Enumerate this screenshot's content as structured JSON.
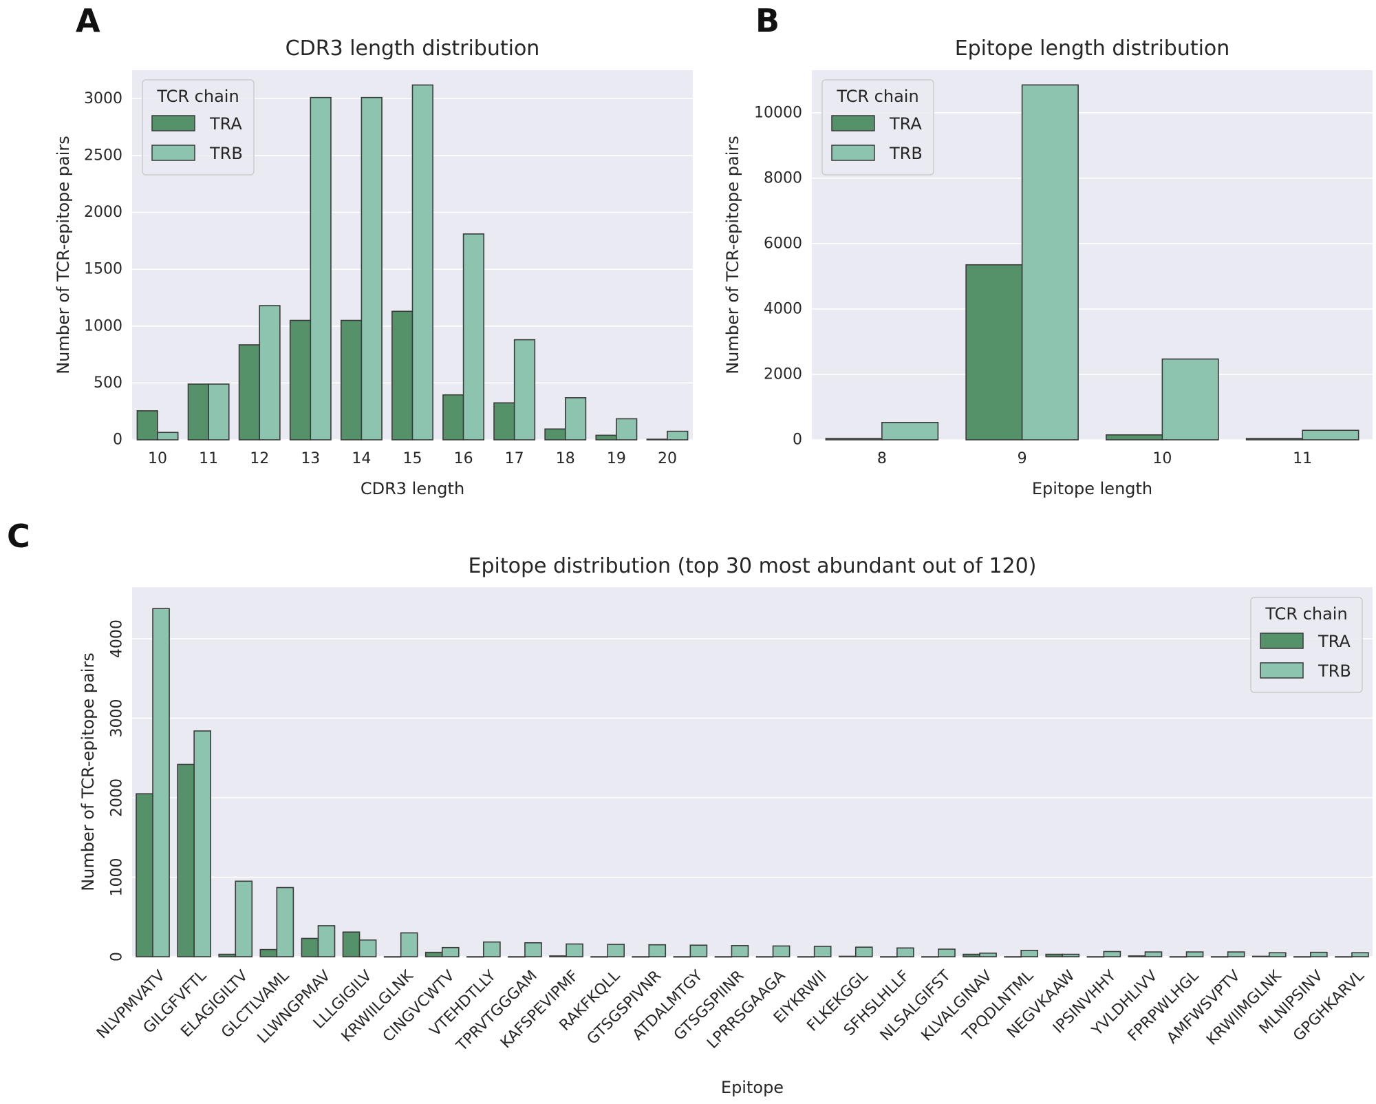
{
  "panels": [
    {
      "letter": "A",
      "chart_data": {
        "type": "bar",
        "title": "CDR3 length distribution",
        "xlabel": "CDR3 length",
        "ylabel": "Number of TCR-epitope pairs",
        "categories": [
          "10",
          "11",
          "12",
          "13",
          "14",
          "15",
          "16",
          "17",
          "18",
          "19",
          "20"
        ],
        "series": [
          {
            "name": "TRA",
            "values": [
              255,
              490,
              835,
              1050,
              1050,
              1130,
              395,
              325,
              95,
              40,
              5
            ]
          },
          {
            "name": "TRB",
            "values": [
              65,
              490,
              1180,
              3010,
              3010,
              3120,
              1810,
              880,
              370,
              185,
              75
            ]
          }
        ],
        "ylim": [
          0,
          3250
        ],
        "yticks": [
          0,
          500,
          1000,
          1500,
          2000,
          2500,
          3000
        ],
        "legend_title": "TCR chain",
        "legend_position": "top-left",
        "grid": true
      }
    },
    {
      "letter": "B",
      "chart_data": {
        "type": "bar",
        "title": "Epitope length distribution",
        "xlabel": "Epitope length",
        "ylabel": "Number of TCR-epitope pairs",
        "categories": [
          "8",
          "9",
          "10",
          "11"
        ],
        "series": [
          {
            "name": "TRA",
            "values": [
              40,
              5350,
              150,
              40
            ]
          },
          {
            "name": "TRB",
            "values": [
              530,
              10850,
              2470,
              290
            ]
          }
        ],
        "ylim": [
          0,
          11300
        ],
        "yticks": [
          0,
          2000,
          4000,
          6000,
          8000,
          10000
        ],
        "legend_title": "TCR chain",
        "legend_position": "top-left",
        "grid": true
      }
    },
    {
      "letter": "C",
      "chart_data": {
        "type": "bar",
        "title": "Epitope distribution (top 30 most abundant out of 120)",
        "xlabel": "Epitope",
        "ylabel": "Number of TCR-epitope pairs",
        "categories": [
          "NLVPMVATV",
          "GILGFVFTL",
          "ELAGIGILTV",
          "GLCTLVAML",
          "LLWNGPMAV",
          "LLLGIGILV",
          "KRWIILGLNK",
          "CINGVCWTV",
          "VTEHDTLLY",
          "TPRVTGGGAM",
          "KAFSPEVIPMF",
          "RAKFKQLL",
          "GTSGSPIVNR",
          "ATDALMTGY",
          "GTSGSPIINR",
          "LPRRSGAAGA",
          "EIYKRWII",
          "FLKEKGGL",
          "SFHSLHLLF",
          "NLSALGIFST",
          "KLVALGINAV",
          "TPQDLNTML",
          "NEGVKAAW",
          "IPSINVHHY",
          "YVLDHLIVV",
          "FPRPWLHGL",
          "AMFWSVPTV",
          "KRWIIMGLNK",
          "MLNIPSINV",
          "GPGHKARVL"
        ],
        "series": [
          {
            "name": "TRA",
            "values": [
              2050,
              2420,
              30,
              90,
              230,
              310,
              0,
              55,
              0,
              0,
              10,
              0,
              0,
              0,
              0,
              0,
              0,
              5,
              0,
              0,
              30,
              0,
              30,
              0,
              10,
              0,
              0,
              5,
              0,
              0
            ]
          },
          {
            "name": "TRB",
            "values": [
              4380,
              2840,
              950,
              870,
              390,
              210,
              300,
              115,
              185,
              175,
              160,
              155,
              150,
              145,
              140,
              135,
              130,
              120,
              110,
              95,
              45,
              80,
              30,
              65,
              60,
              60,
              60,
              50,
              55,
              50
            ]
          }
        ],
        "ylim": [
          0,
          4650
        ],
        "yticks": [
          0,
          1000,
          2000,
          3000,
          4000
        ],
        "legend_title": "TCR chain",
        "legend_position": "top-right",
        "grid": true
      }
    }
  ],
  "colors": {
    "TRA": "#55926a",
    "TRB": "#8cc4af",
    "plot_bg": "#eaeaf2",
    "grid": "#ffffff",
    "edge": "#3a3a3a"
  }
}
